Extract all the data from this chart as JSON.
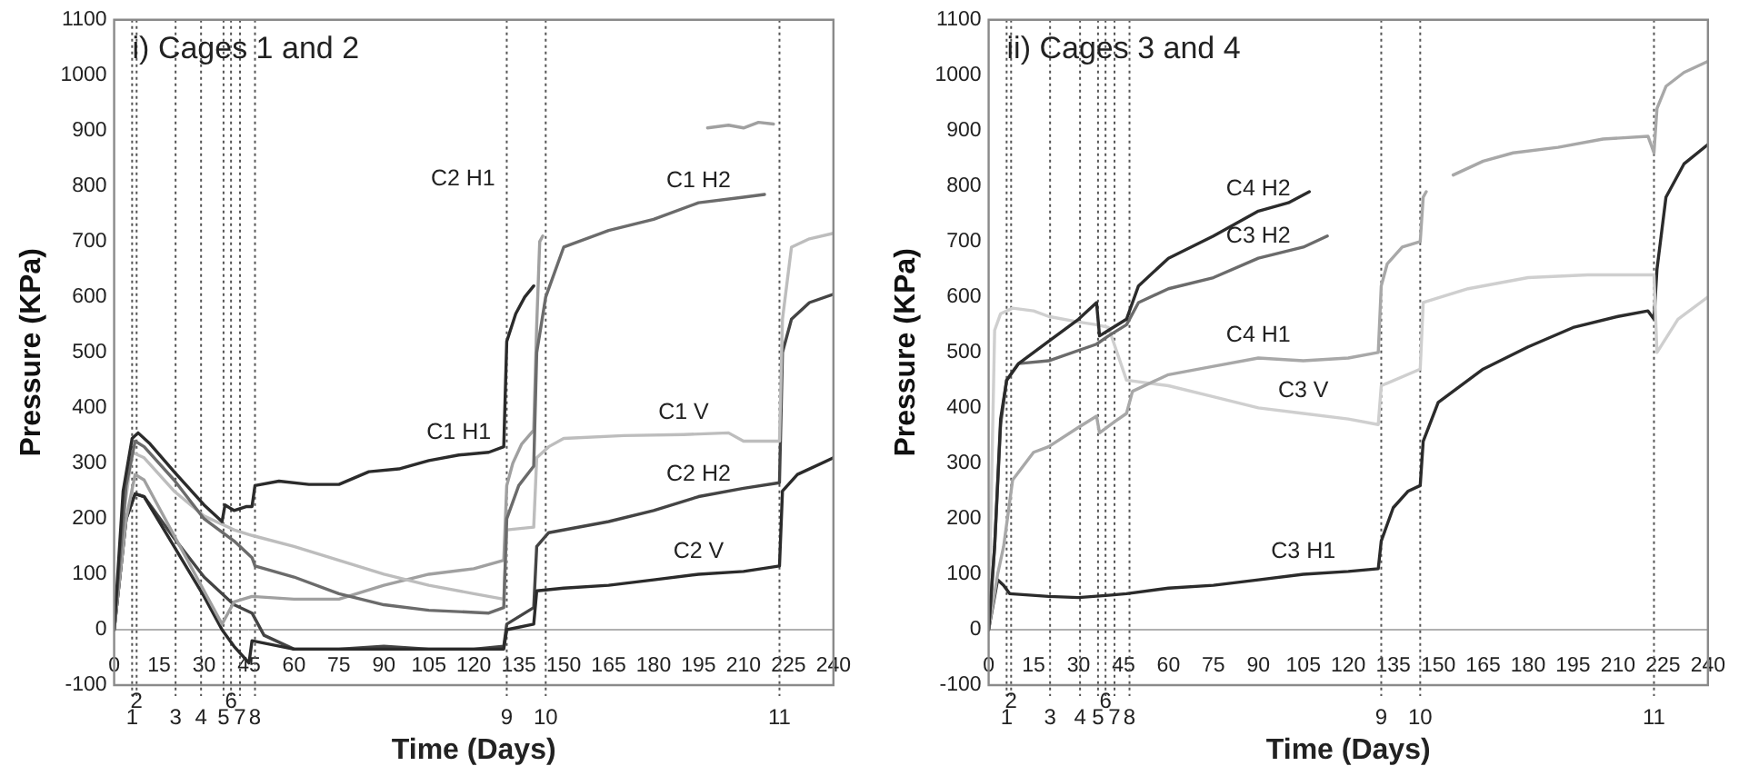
{
  "chart_data": [
    {
      "type": "line",
      "title": "i) Cages 1 and 2",
      "xlabel": "Time (Days)",
      "ylabel": "Pressure (KPa)",
      "xlim": [
        0,
        240
      ],
      "xticks": [
        0,
        15,
        30,
        45,
        60,
        75,
        90,
        105,
        120,
        135,
        150,
        165,
        180,
        195,
        210,
        225,
        240
      ],
      "ylim": [
        -100,
        1100
      ],
      "yticks": [
        -100,
        0,
        100,
        200,
        300,
        400,
        500,
        600,
        700,
        800,
        900,
        1000,
        1100
      ],
      "marker": "none",
      "series": [
        {
          "color": "#2b2b2b",
          "x": [
            0,
            3,
            6,
            8,
            12,
            20,
            30,
            36,
            37,
            40,
            44,
            46,
            47,
            55,
            65,
            75,
            85,
            95,
            105,
            115,
            125,
            130,
            131,
            134,
            137,
            140
          ],
          "values": [
            0,
            250,
            345,
            355,
            335,
            285,
            225,
            195,
            225,
            215,
            222,
            222,
            260,
            268,
            262,
            262,
            285,
            290,
            305,
            315,
            320,
            330,
            520,
            570,
            600,
            620
          ]
        },
        {
          "color": "#6b6b6b",
          "x": [
            0,
            4,
            7,
            10,
            20,
            30,
            40,
            46,
            47,
            60,
            75,
            90,
            105,
            125,
            130,
            131,
            135,
            140,
            141,
            144,
            150,
            165,
            180,
            195,
            210,
            217
          ],
          "values": [
            0,
            260,
            340,
            330,
            270,
            200,
            160,
            130,
            115,
            95,
            65,
            45,
            35,
            30,
            40,
            200,
            260,
            295,
            500,
            600,
            690,
            720,
            740,
            770,
            780,
            785
          ]
        },
        {
          "color": "#bdbdbd",
          "x": [
            0,
            3,
            6,
            10,
            20,
            30,
            36,
            40,
            46,
            60,
            75,
            90,
            105,
            120,
            130,
            131,
            140,
            141,
            145,
            150,
            170,
            190,
            205,
            210,
            222,
            223,
            226,
            232,
            240
          ],
          "values": [
            0,
            200,
            320,
            310,
            250,
            205,
            190,
            180,
            170,
            150,
            125,
            100,
            80,
            65,
            55,
            180,
            185,
            310,
            330,
            345,
            350,
            352,
            355,
            340,
            340,
            560,
            690,
            705,
            715
          ]
        },
        {
          "color": "#a0a0a0",
          "x": [
            0,
            4,
            7,
            10,
            20,
            30,
            36,
            40,
            46,
            60,
            75,
            90,
            105,
            120,
            130,
            131,
            133,
            136,
            140,
            141,
            142,
            143,
            170,
            198,
            205,
            210,
            215,
            220
          ],
          "values": [
            0,
            200,
            280,
            270,
            170,
            70,
            10,
            50,
            60,
            55,
            55,
            80,
            100,
            110,
            125,
            260,
            300,
            335,
            360,
            550,
            700,
            710,
            null,
            905,
            910,
            905,
            915,
            912
          ]
        },
        {
          "color": "#2b2b2b",
          "x": [
            0,
            4,
            7,
            10,
            20,
            30,
            36,
            40,
            45,
            46,
            60,
            75,
            90,
            105,
            120,
            130,
            131,
            140,
            141,
            150,
            165,
            180,
            195,
            210,
            222,
            223,
            228,
            240
          ],
          "values": [
            0,
            200,
            245,
            240,
            150,
            60,
            0,
            -30,
            -60,
            -20,
            -35,
            -35,
            -35,
            -35,
            -35,
            -35,
            0,
            10,
            70,
            75,
            80,
            90,
            100,
            105,
            115,
            250,
            280,
            310
          ]
        },
        {
          "color": "#444444",
          "x": [
            0,
            4,
            7,
            10,
            20,
            30,
            40,
            46,
            50,
            60,
            75,
            90,
            105,
            120,
            130,
            131,
            140,
            141,
            145,
            165,
            180,
            195,
            210,
            222,
            223,
            226,
            232,
            240
          ],
          "values": [
            0,
            200,
            245,
            240,
            165,
            95,
            45,
            30,
            -10,
            -35,
            -35,
            -30,
            -35,
            -35,
            -30,
            10,
            40,
            150,
            175,
            195,
            215,
            240,
            255,
            265,
            500,
            560,
            590,
            605
          ]
        }
      ],
      "ref_lines": [
        {
          "axis": "x",
          "value": 6,
          "color": "#555555",
          "line_style": "dotted"
        },
        {
          "axis": "x",
          "value": 7.5,
          "color": "#555555",
          "line_style": "dotted"
        },
        {
          "axis": "x",
          "value": 20.5,
          "color": "#555555",
          "line_style": "dotted"
        },
        {
          "axis": "x",
          "value": 29,
          "color": "#555555",
          "line_style": "dotted"
        },
        {
          "axis": "x",
          "value": 36.5,
          "color": "#555555",
          "line_style": "dotted"
        },
        {
          "axis": "x",
          "value": 39,
          "color": "#555555",
          "line_style": "dotted"
        },
        {
          "axis": "x",
          "value": 42,
          "color": "#555555",
          "line_style": "dotted"
        },
        {
          "axis": "x",
          "value": 47,
          "color": "#555555",
          "line_style": "dotted"
        },
        {
          "axis": "x",
          "value": 131,
          "color": "#555555",
          "line_style": "dotted"
        },
        {
          "axis": "x",
          "value": 144,
          "color": "#555555",
          "line_style": "dotted"
        },
        {
          "axis": "x",
          "value": 222,
          "color": "#555555",
          "line_style": "dotted"
        }
      ],
      "annotations": [
        {
          "text": "C1 H1",
          "x": 115,
          "y": 315
        },
        {
          "text": "C1 H2",
          "x": 195,
          "y": 770
        },
        "C2 H1",
        {
          "text": "C1 V",
          "x": 190,
          "y": 352
        },
        {
          "text": "C2 H2",
          "x": 195,
          "y": 240
        },
        {
          "text": "C2 V",
          "x": 195,
          "y": 100
        },
        {
          "text": "1",
          "x": 6,
          "y": -100
        },
        {
          "text": "2",
          "x": 7.5,
          "y": -100
        },
        {
          "text": "3",
          "x": 20.5,
          "y": -100
        },
        {
          "text": "4",
          "x": 29,
          "y": -100
        },
        {
          "text": "5",
          "x": 36.5,
          "y": -100
        },
        {
          "text": "6",
          "x": 39,
          "y": -100
        },
        {
          "text": "7",
          "x": 42,
          "y": -100
        },
        {
          "text": "8",
          "x": 47,
          "y": -100
        },
        {
          "text": "9",
          "x": 131,
          "y": -100
        },
        {
          "text": "10",
          "x": 144,
          "y": -100
        },
        {
          "text": "11",
          "x": 222,
          "y": -100
        }
      ]
    },
    {
      "type": "line",
      "title": "ii) Cages 3 and 4",
      "xlabel": "Time (Days)",
      "ylabel": "Pressure (KPa)",
      "xlim": [
        0,
        240
      ],
      "xticks": [
        0,
        15,
        30,
        45,
        60,
        75,
        90,
        105,
        120,
        135,
        150,
        165,
        180,
        195,
        210,
        225,
        240
      ],
      "ylim": [
        -100,
        1100
      ],
      "yticks": [
        -100,
        0,
        100,
        200,
        300,
        400,
        500,
        600,
        700,
        800,
        900,
        1000,
        1100
      ],
      "marker": "none",
      "series": [
        {
          "color": "#2b2b2b",
          "x": [
            0,
            2,
            4,
            6,
            10,
            20,
            30,
            36,
            37,
            40,
            46,
            50,
            60,
            75,
            90,
            100,
            107
          ],
          "values": [
            0,
            150,
            380,
            450,
            480,
            520,
            560,
            590,
            530,
            540,
            560,
            620,
            670,
            710,
            755,
            770,
            790
          ]
        },
        {
          "color": "#6b6b6b",
          "x": [
            0,
            2,
            4,
            6,
            10,
            20,
            36,
            40,
            46,
            50,
            60,
            75,
            90,
            105,
            113
          ],
          "values": [
            0,
            150,
            370,
            450,
            480,
            485,
            515,
            530,
            550,
            590,
            615,
            635,
            670,
            690,
            710
          ]
        },
        {
          "color": "#a8a8a8",
          "x": [
            0,
            3,
            5,
            8,
            15,
            20,
            30,
            36,
            37,
            42,
            46,
            48,
            60,
            75,
            90,
            105,
            120,
            130,
            131,
            133,
            138,
            144,
            145,
            146,
            150,
            155,
            165,
            175,
            190,
            205,
            220,
            222,
            223,
            226,
            232,
            240
          ],
          "values": [
            0,
            100,
            150,
            270,
            320,
            330,
            365,
            385,
            355,
            375,
            390,
            430,
            460,
            475,
            490,
            485,
            490,
            500,
            620,
            660,
            690,
            700,
            780,
            790,
            null,
            820,
            845,
            860,
            870,
            885,
            890,
            860,
            940,
            980,
            1005,
            1025
          ]
        },
        {
          "color": "#cfcfcf",
          "x": [
            0,
            2,
            4,
            8,
            15,
            20,
            30,
            36,
            40,
            46,
            60,
            75,
            90,
            105,
            120,
            130,
            131,
            144,
            145,
            160,
            180,
            200,
            222,
            223,
            230,
            240
          ],
          "values": [
            0,
            540,
            570,
            580,
            575,
            565,
            555,
            550,
            545,
            450,
            440,
            420,
            400,
            390,
            380,
            370,
            440,
            470,
            590,
            615,
            635,
            640,
            640,
            500,
            560,
            600
          ]
        },
        {
          "color": "#2b2b2b",
          "x": [
            0,
            3,
            5,
            7,
            20,
            30,
            40,
            46,
            60,
            75,
            90,
            105,
            120,
            130,
            131,
            135,
            140,
            144,
            145,
            150,
            165,
            180,
            195,
            210,
            220,
            222,
            223,
            226,
            232,
            240
          ],
          "values": [
            0,
            90,
            80,
            65,
            60,
            58,
            62,
            65,
            75,
            80,
            90,
            100,
            105,
            110,
            160,
            220,
            250,
            260,
            340,
            410,
            470,
            510,
            545,
            565,
            575,
            560,
            650,
            780,
            840,
            875
          ]
        }
      ],
      "ref_lines": [
        {
          "axis": "x",
          "value": 6,
          "color": "#555555",
          "line_style": "dotted"
        },
        {
          "axis": "x",
          "value": 7.5,
          "color": "#555555",
          "line_style": "dotted"
        },
        {
          "axis": "x",
          "value": 20.5,
          "color": "#555555",
          "line_style": "dotted"
        },
        {
          "axis": "x",
          "value": 30.5,
          "color": "#555555",
          "line_style": "dotted"
        },
        {
          "axis": "x",
          "value": 36.5,
          "color": "#555555",
          "line_style": "dotted"
        },
        {
          "axis": "x",
          "value": 39,
          "color": "#555555",
          "line_style": "dotted"
        },
        {
          "axis": "x",
          "value": 42,
          "color": "#555555",
          "line_style": "dotted"
        },
        {
          "axis": "x",
          "value": 47,
          "color": "#555555",
          "line_style": "dotted"
        },
        {
          "axis": "x",
          "value": 131,
          "color": "#555555",
          "line_style": "dotted"
        },
        {
          "axis": "x",
          "value": 144,
          "color": "#555555",
          "line_style": "dotted"
        },
        {
          "axis": "x",
          "value": 222,
          "color": "#555555",
          "line_style": "dotted"
        }
      ],
      "annotations": [
        {
          "text": "C4 H2",
          "x": 90,
          "y": 755
        },
        {
          "text": "C3 H2",
          "x": 90,
          "y": 670
        },
        {
          "text": "C4 H1",
          "x": 90,
          "y": 490
        },
        {
          "text": "C3 V",
          "x": 105,
          "y": 390
        },
        {
          "text": "C3 H1",
          "x": 105,
          "y": 100
        },
        {
          "text": "1",
          "x": 6,
          "y": -100
        },
        {
          "text": "2",
          "x": 7.5,
          "y": -100
        },
        {
          "text": "3",
          "x": 20.5,
          "y": -100
        },
        {
          "text": "4",
          "x": 30.5,
          "y": -100
        },
        {
          "text": "5",
          "x": 36.5,
          "y": -100
        },
        {
          "text": "6",
          "x": 39,
          "y": -100
        },
        {
          "text": "7",
          "x": 42,
          "y": -100
        },
        {
          "text": "8",
          "x": 47,
          "y": -100
        },
        {
          "text": "9",
          "x": 131,
          "y": -100
        },
        {
          "text": "10",
          "x": 144,
          "y": -100
        },
        {
          "text": "11",
          "x": 222,
          "y": -100
        }
      ]
    }
  ]
}
